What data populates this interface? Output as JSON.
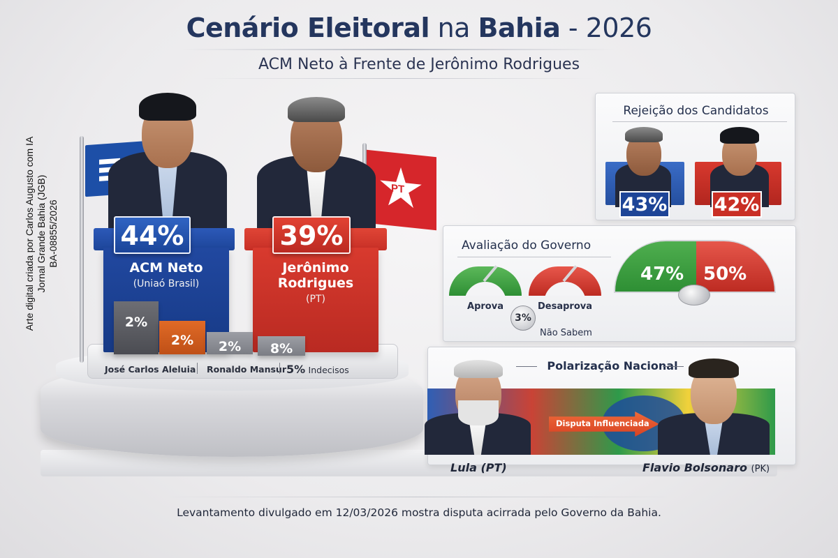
{
  "header": {
    "title_part1": "Cenário Eleitoral",
    "title_part2": " na ",
    "title_part3": "Bahia",
    "title_part4": " - 2026",
    "subtitle": "ACM Neto à Frente de Jerônimo Rodrigues"
  },
  "credit": [
    "Arte digital criada por Carlos Augusto com IA",
    "Jornal Grande Bahia (JGB)",
    "BA-08855/2026"
  ],
  "main_candidates": [
    {
      "name": "ACM Neto",
      "party": "(Uniaó Brasil)",
      "percent": "44%",
      "color": "#1d4fa7"
    },
    {
      "name": "Jerônimo Rodrigues",
      "party": "(PT)",
      "percent": "39%",
      "color": "#d6262b"
    }
  ],
  "flags": {
    "pt_label": "PT"
  },
  "minor_bars": [
    "2%",
    "2%",
    "2%",
    "8%"
  ],
  "stage_labels": {
    "aleluia": "José Carlos Aleluia",
    "mansur": "Ronaldo Mansur",
    "indecisos_pct": "5%",
    "indecisos": "Indecisos"
  },
  "rejeicao": {
    "title": "Rejeição dos Candidatos",
    "items": [
      {
        "percent": "43%",
        "color": "#254f9f"
      },
      {
        "percent": "42%",
        "color": "#c92f25"
      }
    ]
  },
  "avaliacao": {
    "title": "Avaliação do Governo",
    "aprova_label": "Aprova",
    "desaprova_label": "Desaprova",
    "nao_sabem_pct": "3%",
    "nao_sabem_label": "Não Sabem",
    "gauge": {
      "aprova": "47%",
      "desaprova": "50%",
      "aprova_color": "#2e8f34",
      "desaprova_color": "#bd2b22"
    }
  },
  "polarizacao": {
    "title": "Polarização Nacional",
    "arrow_text": "Disputa Influenciada",
    "left_name": "Lula",
    "left_party": "(PT)",
    "right_name": "Flavio Bolsonaro",
    "right_party": "(PK)"
  },
  "footer": "Levantamento divulgado em 12/03/2026 mostra disputa acirrada pelo Governo da Bahia."
}
